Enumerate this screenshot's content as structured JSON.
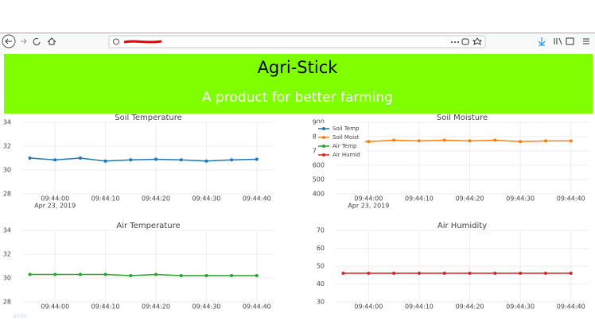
{
  "header": {
    "title": "Agri-Stick",
    "subtitle": "A product for better farming"
  },
  "overlay_text": "ando",
  "chart_data": [
    {
      "type": "line",
      "title": "Soil Temperature",
      "date_label": "Apr 23, 2019",
      "x": [
        "2019-04-23 09:43:55",
        "2019-04-23 09:44:00",
        "2019-04-23 09:44:05",
        "2019-04-23 09:44:10",
        "2019-04-23 09:44:15",
        "2019-04-23 09:44:20",
        "2019-04-23 09:44:25",
        "2019-04-23 09:44:30",
        "2019-04-23 09:44:35",
        "2019-04-23 09:44:40"
      ],
      "xlim": [
        "2019-04-23 09:43:53.5",
        "2019-04-23 09:44:43.5"
      ],
      "xticks": [
        {
          "value": "2019-04-23 09:44:00",
          "label": "09:44:00"
        },
        {
          "value": "2019-04-23 09:44:10",
          "label": "09:44:10"
        },
        {
          "value": "2019-04-23 09:44:20",
          "label": "09:44:20"
        },
        {
          "value": "2019-04-23 09:44:30",
          "label": "09:44:30"
        },
        {
          "value": "2019-04-23 09:44:40",
          "label": "09:44:40"
        }
      ],
      "ylim": [
        28,
        34
      ],
      "yticks": [
        28,
        30,
        32,
        34
      ],
      "grid": true,
      "series": [
        {
          "name": "Soil Temp",
          "color": "#1f77b4",
          "values": [
            31.0,
            30.85,
            31.0,
            30.75,
            30.85,
            30.9,
            30.85,
            30.75,
            30.85,
            30.9
          ]
        }
      ]
    },
    {
      "type": "line",
      "title": "Soil Moisture",
      "date_label": "Apr 23, 2019",
      "legend": "top-left",
      "x": [
        "2019-04-23 09:43:55",
        "2019-04-23 09:44:00",
        "2019-04-23 09:44:05",
        "2019-04-23 09:44:10",
        "2019-04-23 09:44:15",
        "2019-04-23 09:44:20",
        "2019-04-23 09:44:25",
        "2019-04-23 09:44:30",
        "2019-04-23 09:44:35",
        "2019-04-23 09:44:40"
      ],
      "xlim": [
        "2019-04-23 09:43:53.5",
        "2019-04-23 09:44:43.5"
      ],
      "xticks": [
        {
          "value": "2019-04-23 09:44:00",
          "label": "09:44:00"
        },
        {
          "value": "2019-04-23 09:44:10",
          "label": "09:44:10"
        },
        {
          "value": "2019-04-23 09:44:20",
          "label": "09:44:20"
        },
        {
          "value": "2019-04-23 09:44:30",
          "label": "09:44:30"
        },
        {
          "value": "2019-04-23 09:44:40",
          "label": "09:44:40"
        }
      ],
      "ylim": [
        400,
        900
      ],
      "yticks": [
        400,
        500,
        600,
        700,
        800,
        900
      ],
      "grid": true,
      "series": [
        {
          "name": "Soil Moist",
          "color": "#ff7f0e",
          "values": [
            770,
            765,
            775,
            770,
            775,
            770,
            775,
            765,
            770,
            770
          ]
        }
      ]
    },
    {
      "type": "line",
      "title": "Air Temperature",
      "x": [
        "2019-04-23 09:43:55",
        "2019-04-23 09:44:00",
        "2019-04-23 09:44:05",
        "2019-04-23 09:44:10",
        "2019-04-23 09:44:15",
        "2019-04-23 09:44:20",
        "2019-04-23 09:44:25",
        "2019-04-23 09:44:30",
        "2019-04-23 09:44:35",
        "2019-04-23 09:44:40"
      ],
      "xlim": [
        "2019-04-23 09:43:53.5",
        "2019-04-23 09:44:43.5"
      ],
      "xticks": [
        {
          "value": "2019-04-23 09:44:00",
          "label": "09:44:00"
        },
        {
          "value": "2019-04-23 09:44:10",
          "label": "09:44:10"
        },
        {
          "value": "2019-04-23 09:44:20",
          "label": "09:44:20"
        },
        {
          "value": "2019-04-23 09:44:30",
          "label": "09:44:30"
        },
        {
          "value": "2019-04-23 09:44:40",
          "label": "09:44:40"
        }
      ],
      "ylim": [
        28,
        34
      ],
      "yticks": [
        28,
        30,
        32,
        34
      ],
      "grid": true,
      "series": [
        {
          "name": "Air Temp",
          "color": "#2ca02c",
          "values": [
            30.3,
            30.3,
            30.3,
            30.3,
            30.2,
            30.3,
            30.2,
            30.2,
            30.2,
            30.2
          ]
        }
      ]
    },
    {
      "type": "line",
      "title": "Air Humidity",
      "x": [
        "2019-04-23 09:43:55",
        "2019-04-23 09:44:00",
        "2019-04-23 09:44:05",
        "2019-04-23 09:44:10",
        "2019-04-23 09:44:15",
        "2019-04-23 09:44:20",
        "2019-04-23 09:44:25",
        "2019-04-23 09:44:30",
        "2019-04-23 09:44:35",
        "2019-04-23 09:44:40"
      ],
      "xlim": [
        "2019-04-23 09:43:53.5",
        "2019-04-23 09:44:43.5"
      ],
      "xticks": [
        {
          "value": "2019-04-23 09:44:00",
          "label": "09:44:00"
        },
        {
          "value": "2019-04-23 09:44:10",
          "label": "09:44:10"
        },
        {
          "value": "2019-04-23 09:44:20",
          "label": "09:44:20"
        },
        {
          "value": "2019-04-23 09:44:30",
          "label": "09:44:30"
        },
        {
          "value": "2019-04-23 09:44:40",
          "label": "09:44:40"
        }
      ],
      "ylim": [
        30,
        70
      ],
      "yticks": [
        30,
        40,
        50,
        60,
        70
      ],
      "grid": true,
      "series": [
        {
          "name": "Air Humid",
          "color": "#d62728",
          "values": [
            46,
            46,
            46,
            46,
            46,
            46,
            46,
            46,
            46,
            46
          ]
        }
      ]
    }
  ]
}
